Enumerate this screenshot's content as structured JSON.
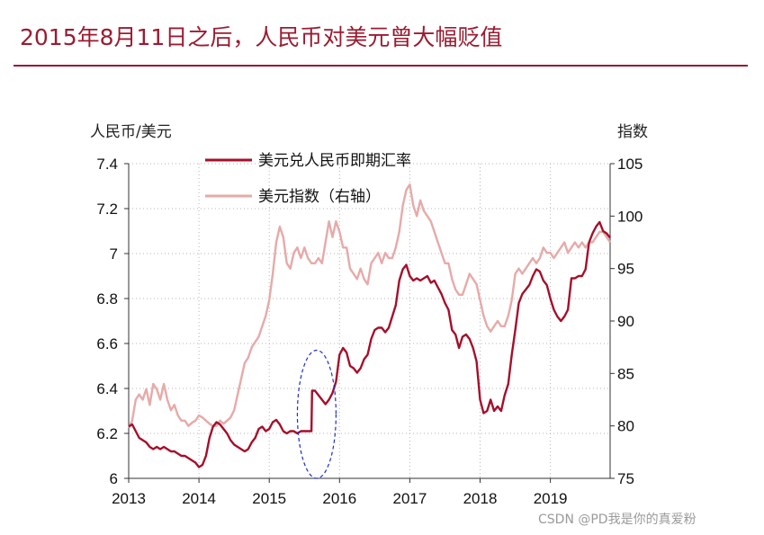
{
  "chart_data": {
    "type": "line",
    "title": "2015年8月11日之后，人民币对美元曾大幅贬值",
    "ylabel_left": "人民币/美元",
    "ylabel_right": "指数",
    "x_ticks": [
      "2013",
      "2014",
      "2015",
      "2016",
      "2017",
      "2018",
      "2019"
    ],
    "xlim": [
      2013,
      2019.85
    ],
    "y_left": {
      "lim": [
        6.0,
        7.4
      ],
      "ticks": [
        "6",
        "6.2",
        "6.4",
        "6.6",
        "6.8",
        "7",
        "7.2",
        "7.4"
      ]
    },
    "y_right": {
      "lim": [
        75,
        105
      ],
      "ticks": [
        "75",
        "80",
        "85",
        "90",
        "95",
        "100",
        "105"
      ]
    },
    "grid": "dotted",
    "legend_position": "top-center",
    "colors": {
      "title": "#9b1b30",
      "usdcny": "#a50f2a",
      "dxy": "#e6aaa8",
      "annotation": "#1a2fd0"
    },
    "series": [
      {
        "name": "美元兑人民币即期汇率",
        "axis": "left",
        "x": [
          2013.0,
          2013.05,
          2013.1,
          2013.15,
          2013.2,
          2013.25,
          2013.3,
          2013.35,
          2013.4,
          2013.45,
          2013.5,
          2013.55,
          2013.6,
          2013.65,
          2013.7,
          2013.75,
          2013.8,
          2013.85,
          2013.9,
          2013.95,
          2014.0,
          2014.05,
          2014.1,
          2014.15,
          2014.2,
          2014.25,
          2014.3,
          2014.35,
          2014.4,
          2014.45,
          2014.5,
          2014.55,
          2014.6,
          2014.65,
          2014.7,
          2014.75,
          2014.8,
          2014.85,
          2014.9,
          2014.95,
          2015.0,
          2015.05,
          2015.1,
          2015.15,
          2015.2,
          2015.25,
          2015.3,
          2015.35,
          2015.4,
          2015.45,
          2015.5,
          2015.55,
          2015.6,
          2015.61,
          2015.65,
          2015.7,
          2015.75,
          2015.8,
          2015.85,
          2015.9,
          2015.95,
          2016.0,
          2016.05,
          2016.1,
          2016.15,
          2016.2,
          2016.25,
          2016.3,
          2016.35,
          2016.4,
          2016.45,
          2016.5,
          2016.55,
          2016.6,
          2016.65,
          2016.7,
          2016.75,
          2016.8,
          2016.85,
          2016.9,
          2016.95,
          2017.0,
          2017.05,
          2017.1,
          2017.15,
          2017.2,
          2017.25,
          2017.3,
          2017.35,
          2017.4,
          2017.45,
          2017.5,
          2017.55,
          2017.6,
          2017.65,
          2017.7,
          2017.75,
          2017.8,
          2017.85,
          2017.9,
          2017.95,
          2018.0,
          2018.05,
          2018.1,
          2018.15,
          2018.2,
          2018.25,
          2018.3,
          2018.35,
          2018.4,
          2018.45,
          2018.5,
          2018.55,
          2018.6,
          2018.65,
          2018.7,
          2018.75,
          2018.8,
          2018.85,
          2018.9,
          2018.95,
          2019.0,
          2019.05,
          2019.1,
          2019.15,
          2019.2,
          2019.25,
          2019.3,
          2019.35,
          2019.4,
          2019.45,
          2019.5,
          2019.55,
          2019.6,
          2019.65,
          2019.7,
          2019.75,
          2019.8,
          2019.85
        ],
        "values": [
          6.23,
          6.24,
          6.21,
          6.18,
          6.17,
          6.16,
          6.14,
          6.13,
          6.14,
          6.13,
          6.14,
          6.13,
          6.12,
          6.12,
          6.11,
          6.1,
          6.1,
          6.09,
          6.08,
          6.07,
          6.05,
          6.06,
          6.1,
          6.18,
          6.23,
          6.25,
          6.24,
          6.22,
          6.2,
          6.17,
          6.15,
          6.14,
          6.13,
          6.12,
          6.13,
          6.16,
          6.18,
          6.22,
          6.23,
          6.21,
          6.22,
          6.25,
          6.26,
          6.24,
          6.21,
          6.2,
          6.21,
          6.21,
          6.2,
          6.21,
          6.21,
          6.21,
          6.21,
          6.39,
          6.39,
          6.37,
          6.35,
          6.33,
          6.35,
          6.38,
          6.43,
          6.55,
          6.58,
          6.56,
          6.5,
          6.49,
          6.47,
          6.49,
          6.53,
          6.55,
          6.62,
          6.66,
          6.67,
          6.67,
          6.65,
          6.67,
          6.72,
          6.77,
          6.88,
          6.93,
          6.95,
          6.9,
          6.88,
          6.89,
          6.88,
          6.89,
          6.9,
          6.87,
          6.88,
          6.85,
          6.82,
          6.78,
          6.75,
          6.66,
          6.64,
          6.58,
          6.63,
          6.64,
          6.62,
          6.58,
          6.52,
          6.35,
          6.29,
          6.3,
          6.35,
          6.3,
          6.32,
          6.3,
          6.37,
          6.42,
          6.55,
          6.66,
          6.78,
          6.82,
          6.84,
          6.86,
          6.9,
          6.93,
          6.92,
          6.88,
          6.86,
          6.8,
          6.75,
          6.72,
          6.7,
          6.72,
          6.75,
          6.89,
          6.89,
          6.9,
          6.9,
          6.93,
          7.05,
          7.09,
          7.12,
          7.14,
          7.1,
          7.09,
          7.07
        ]
      },
      {
        "name": "美元指数（右轴）",
        "axis": "right",
        "x": [
          2013.0,
          2013.05,
          2013.1,
          2013.15,
          2013.2,
          2013.25,
          2013.3,
          2013.35,
          2013.4,
          2013.45,
          2013.5,
          2013.55,
          2013.6,
          2013.65,
          2013.7,
          2013.75,
          2013.8,
          2013.85,
          2013.9,
          2013.95,
          2014.0,
          2014.05,
          2014.1,
          2014.15,
          2014.2,
          2014.25,
          2014.3,
          2014.35,
          2014.4,
          2014.45,
          2014.5,
          2014.55,
          2014.6,
          2014.65,
          2014.7,
          2014.75,
          2014.8,
          2014.85,
          2014.9,
          2014.95,
          2015.0,
          2015.05,
          2015.1,
          2015.15,
          2015.2,
          2015.25,
          2015.3,
          2015.35,
          2015.4,
          2015.45,
          2015.5,
          2015.55,
          2015.6,
          2015.65,
          2015.7,
          2015.75,
          2015.8,
          2015.85,
          2015.9,
          2015.95,
          2016.0,
          2016.05,
          2016.1,
          2016.15,
          2016.2,
          2016.25,
          2016.3,
          2016.35,
          2016.4,
          2016.45,
          2016.5,
          2016.55,
          2016.6,
          2016.65,
          2016.7,
          2016.75,
          2016.8,
          2016.85,
          2016.9,
          2016.95,
          2017.0,
          2017.05,
          2017.1,
          2017.15,
          2017.2,
          2017.25,
          2017.3,
          2017.35,
          2017.4,
          2017.45,
          2017.5,
          2017.55,
          2017.6,
          2017.65,
          2017.7,
          2017.75,
          2017.8,
          2017.85,
          2017.9,
          2017.95,
          2018.0,
          2018.05,
          2018.1,
          2018.15,
          2018.2,
          2018.25,
          2018.3,
          2018.35,
          2018.4,
          2018.45,
          2018.5,
          2018.55,
          2018.6,
          2018.65,
          2018.7,
          2018.75,
          2018.8,
          2018.85,
          2018.9,
          2018.95,
          2019.0,
          2019.05,
          2019.1,
          2019.15,
          2019.2,
          2019.25,
          2019.3,
          2019.35,
          2019.4,
          2019.45,
          2019.5,
          2019.55,
          2019.6,
          2019.65,
          2019.7,
          2019.75,
          2019.8,
          2019.85
        ],
        "values": [
          79.8,
          80.5,
          82.5,
          83.0,
          82.5,
          83.5,
          82.0,
          84.0,
          83.5,
          82.5,
          84.0,
          82.5,
          81.5,
          82.0,
          81.0,
          80.5,
          80.5,
          80.0,
          80.3,
          80.5,
          81.0,
          80.8,
          80.5,
          80.2,
          80.0,
          80.0,
          80.5,
          80.2,
          80.5,
          80.8,
          81.5,
          83.0,
          84.5,
          86.0,
          86.5,
          87.5,
          88.0,
          88.5,
          89.5,
          90.5,
          92.0,
          94.5,
          97.5,
          99.0,
          98.0,
          95.5,
          95.0,
          96.5,
          97.0,
          96.0,
          97.0,
          96.0,
          95.5,
          95.5,
          96.0,
          95.5,
          97.5,
          99.5,
          98.0,
          99.5,
          98.5,
          97.0,
          97.0,
          95.0,
          94.5,
          94.0,
          95.0,
          94.0,
          93.5,
          95.5,
          96.0,
          96.5,
          95.5,
          96.5,
          96.0,
          96.0,
          97.0,
          98.5,
          101.0,
          102.5,
          103.0,
          101.0,
          100.0,
          101.5,
          100.5,
          100.0,
          99.5,
          98.5,
          97.5,
          96.5,
          95.5,
          95.5,
          94.0,
          93.0,
          92.5,
          92.5,
          93.5,
          94.5,
          94.0,
          93.5,
          92.0,
          90.5,
          89.5,
          89.0,
          89.5,
          90.0,
          89.5,
          89.5,
          90.5,
          92.0,
          94.5,
          95.0,
          94.5,
          95.0,
          95.5,
          96.0,
          95.5,
          96.0,
          97.0,
          96.5,
          96.5,
          96.0,
          96.5,
          97.0,
          97.5,
          96.5,
          97.0,
          97.5,
          97.0,
          97.5,
          97.0,
          97.5,
          97.5,
          98.0,
          98.5,
          98.5,
          98.0,
          97.5
        ]
      }
    ],
    "annotation": {
      "shape": "dashed-ellipse",
      "x_range": [
        2015.4,
        2015.95
      ],
      "y_range": [
        6.0,
        6.57
      ]
    }
  },
  "watermark": "CSDN @PD我是你的真爱粉"
}
